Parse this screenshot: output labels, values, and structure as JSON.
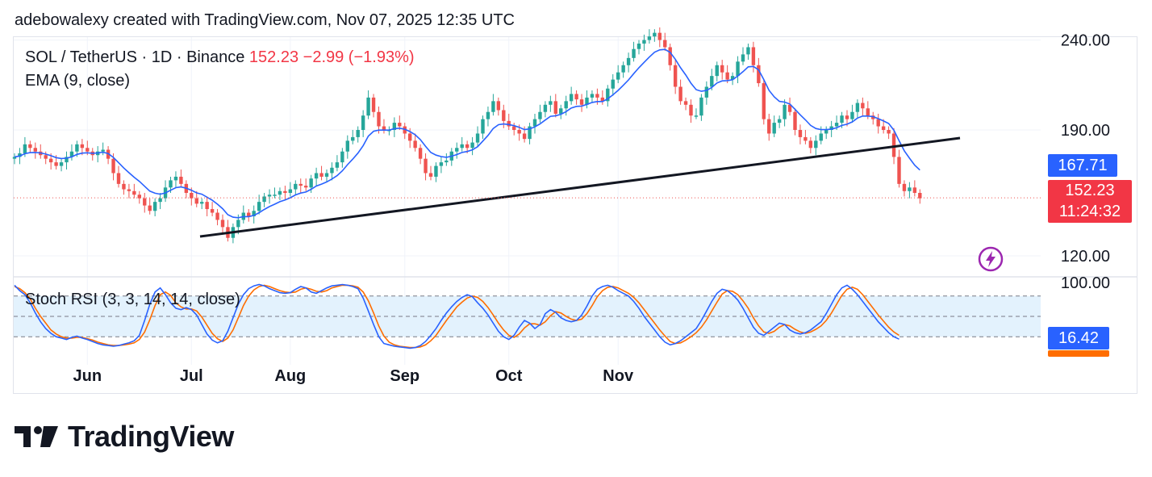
{
  "header": {
    "credit": "adebowalexy created with TradingView.com, Nov 07, 2025 12:35 UTC"
  },
  "legend": {
    "symbol": "SOL / TetherUS · 1D · Binance",
    "last": "152.23",
    "change": "−2.99 (−1.93%)",
    "ema": "EMA (9, close)",
    "stoch": "Stoch RSI (3, 3, 14, 14, close)"
  },
  "tags": {
    "ema": "167.71",
    "last": "152.23",
    "countdown": "11:24:32",
    "stoch_k": "16.42"
  },
  "brand": {
    "name": "TradingView"
  },
  "colors": {
    "up": "#26a69a",
    "down": "#ef5350",
    "ema": "#2962ff",
    "stoch_k": "#2962ff",
    "stoch_d": "#ff6d00",
    "band": "#e3f2fd",
    "trendline": "#131722"
  },
  "chart_data": {
    "type": "candlestick",
    "price_axis": {
      "ticks": [
        120,
        190,
        240
      ],
      "tick_labels": [
        "120.00",
        "190.00",
        "240.00"
      ]
    },
    "stoch_axis": {
      "ticks": [
        100
      ],
      "tick_labels": [
        "100.00"
      ],
      "bands": [
        20,
        50,
        80
      ]
    },
    "time_axis": {
      "labels": [
        {
          "label": "Jun",
          "index": 14
        },
        {
          "label": "Jul",
          "index": 34
        },
        {
          "label": "Aug",
          "index": 53
        },
        {
          "label": "Sep",
          "index": 75
        },
        {
          "label": "Oct",
          "index": 95
        },
        {
          "label": "Nov",
          "index": 116
        }
      ]
    },
    "ema_last": 167.71,
    "last": 152.23,
    "closes": [
      175,
      177,
      182,
      180,
      178,
      176,
      174,
      172,
      170,
      172,
      175,
      178,
      182,
      180,
      178,
      176,
      178,
      179,
      174,
      166,
      160,
      157,
      156,
      154,
      152,
      148,
      145,
      150,
      152,
      158,
      162,
      164,
      160,
      155,
      152,
      149,
      150,
      146,
      144,
      140,
      136,
      130,
      136,
      140,
      144,
      142,
      145,
      150,
      153,
      154,
      154,
      156,
      155,
      157,
      160,
      159,
      158,
      163,
      166,
      164,
      166,
      169,
      172,
      178,
      184,
      186,
      190,
      198,
      208,
      200,
      192,
      190,
      190,
      194,
      192,
      188,
      184,
      180,
      174,
      166,
      164,
      170,
      172,
      173,
      178,
      180,
      182,
      180,
      183,
      188,
      196,
      200,
      206,
      201,
      195,
      192,
      190,
      188,
      185,
      192,
      196,
      200,
      204,
      206,
      199,
      202,
      206,
      210,
      207,
      204,
      208,
      210,
      208,
      206,
      213,
      218,
      222,
      226,
      230,
      235,
      238,
      240,
      242,
      244,
      240,
      236,
      226,
      214,
      206,
      204,
      198,
      198,
      208,
      214,
      220,
      226,
      222,
      218,
      220,
      228,
      232,
      236,
      226,
      216,
      196,
      188,
      194,
      196,
      204,
      200,
      190,
      186,
      184,
      180,
      184,
      188,
      190,
      192,
      194,
      198,
      196,
      200,
      205,
      202,
      198,
      196,
      192,
      190,
      188,
      175,
      160,
      156,
      158,
      155,
      152
    ],
    "ema": [
      175,
      175.5,
      176.8,
      177.4,
      177.5,
      177.2,
      176.6,
      175.7,
      174.6,
      174.1,
      174.3,
      175,
      176.4,
      177.1,
      177.3,
      177,
      177.2,
      177.6,
      176.9,
      174.7,
      171.8,
      168.8,
      166.2,
      163.7,
      161.4,
      158.7,
      156,
      154.8,
      154.3,
      155,
      156.5,
      157.9,
      158.3,
      157.6,
      156.5,
      155,
      154.3,
      152.6,
      150.9,
      148.7,
      146.2,
      142.9,
      141.5,
      141.2,
      141.8,
      141.8,
      142.5,
      144,
      145.8,
      147.4,
      148.7,
      150.1,
      151.1,
      152.3,
      153.9,
      154.9,
      155.5,
      157,
      158.8,
      159.9,
      161.1,
      162.7,
      164.6,
      167.3,
      170.7,
      173.8,
      177.1,
      181.3,
      186.6,
      189.3,
      189.9,
      189.9,
      189.9,
      190.7,
      191,
      190.4,
      189.1,
      187.3,
      184.6,
      180.9,
      177.5,
      176,
      175.2,
      174.8,
      175.4,
      176.3,
      177.5,
      178,
      178.9,
      180.7,
      183.8,
      187,
      190.8,
      192.9,
      193.3,
      193,
      192.4,
      191.5,
      190.2,
      190.6,
      191.7,
      193.4,
      195.5,
      197.6,
      197.9,
      198.7,
      200.2,
      202.2,
      203.1,
      203.3,
      204.2,
      205.3,
      205.8,
      205.8,
      207.3,
      209.5,
      212,
      214.8,
      217.8,
      221.3,
      224.6,
      227.6,
      230.5,
      233.2,
      234.5,
      234.8,
      233.1,
      229.3,
      224.6,
      220.5,
      216,
      212.4,
      211.5,
      212,
      213.6,
      216.1,
      217.3,
      217.4,
      217.9,
      220,
      222.4,
      225.1,
      225.3,
      223.4,
      218,
      212,
      208.4,
      205.9,
      205.5,
      204.4,
      201.5,
      198.4,
      195.6,
      192.5,
      190.8,
      190.2,
      190.2,
      190.5,
      191.2,
      192.5,
      193.2,
      194.5,
      196.6,
      197.7,
      197.7,
      197.4,
      196.3,
      195,
      193.6,
      189.9,
      184,
      178.4,
      174.3,
      170.4,
      167.71
    ],
    "stoch_k": [
      96,
      88,
      82,
      70,
      55,
      42,
      32,
      25,
      20,
      18,
      16,
      19,
      21,
      18,
      16,
      13,
      10,
      8,
      7,
      6,
      7,
      9,
      11,
      14,
      22,
      44,
      68,
      86,
      92,
      82,
      70,
      62,
      60,
      63,
      60,
      52,
      38,
      24,
      15,
      11,
      14,
      28,
      48,
      68,
      82,
      91,
      95,
      97,
      95,
      91,
      88,
      85,
      84,
      85,
      90,
      94,
      92,
      86,
      84,
      88,
      92,
      95,
      96,
      97,
      96,
      94,
      91,
      77,
      58,
      38,
      20,
      10,
      8,
      6,
      5,
      4,
      3,
      4,
      7,
      13,
      22,
      32,
      44,
      55,
      64,
      72,
      78,
      82,
      79,
      70,
      62,
      52,
      40,
      28,
      20,
      16,
      22,
      34,
      44,
      40,
      32,
      38,
      54,
      60,
      56,
      48,
      44,
      42,
      44,
      52,
      65,
      80,
      90,
      94,
      96,
      93,
      88,
      84,
      80,
      72,
      62,
      50,
      40,
      30,
      20,
      12,
      8,
      10,
      14,
      20,
      26,
      32,
      44,
      58,
      72,
      84,
      90,
      88,
      82,
      74,
      62,
      48,
      34,
      25,
      22,
      28,
      34,
      40,
      38,
      30,
      26,
      24,
      26,
      30,
      36,
      42,
      54,
      68,
      82,
      92,
      96,
      90,
      82,
      72,
      62,
      52,
      42,
      34,
      26,
      20,
      16.42
    ],
    "stoch_d": [
      94,
      91,
      85,
      76,
      62,
      50,
      40,
      30,
      24,
      20,
      18,
      18,
      19,
      19,
      17,
      15,
      12,
      10,
      8,
      7,
      7,
      8,
      9,
      11,
      16,
      27,
      45,
      66,
      82,
      86,
      81,
      70,
      64,
      61,
      61,
      58,
      49,
      37,
      25,
      17,
      13,
      18,
      30,
      48,
      66,
      80,
      89,
      94,
      96,
      94,
      91,
      88,
      86,
      85,
      86,
      90,
      92,
      90,
      87,
      86,
      88,
      92,
      94,
      96,
      96,
      95,
      93,
      86,
      73,
      55,
      36,
      21,
      12,
      8,
      6,
      5,
      4,
      4,
      5,
      8,
      14,
      22,
      33,
      44,
      54,
      64,
      71,
      77,
      80,
      78,
      72,
      63,
      52,
      40,
      30,
      22,
      19,
      24,
      33,
      39,
      39,
      37,
      42,
      51,
      57,
      55,
      50,
      46,
      44,
      46,
      54,
      66,
      79,
      88,
      93,
      94,
      92,
      88,
      84,
      78,
      70,
      60,
      50,
      40,
      30,
      21,
      13,
      10,
      11,
      15,
      20,
      26,
      34,
      45,
      58,
      71,
      83,
      88,
      87,
      82,
      73,
      62,
      48,
      36,
      27,
      25,
      28,
      34,
      38,
      36,
      31,
      27,
      25,
      27,
      31,
      36,
      44,
      55,
      68,
      81,
      90,
      93,
      90,
      82,
      72,
      62,
      52,
      43,
      34,
      27,
      22
    ]
  }
}
